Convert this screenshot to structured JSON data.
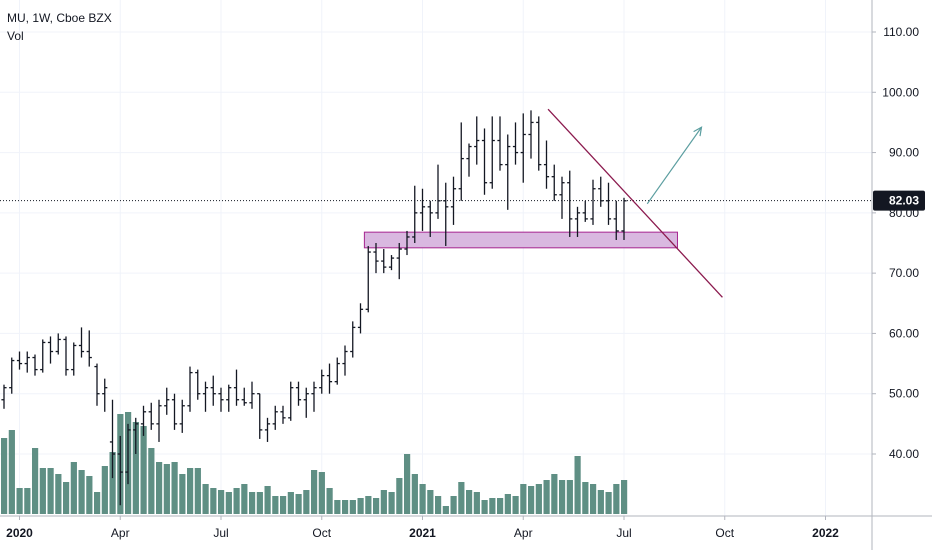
{
  "header": {
    "symbol_line": "MU, 1W, Cboe BZX",
    "indicator": "Vol"
  },
  "colors": {
    "price_bar": "#131722",
    "volume": "#5f8f84",
    "trendline": "#8b1a4e",
    "zone_fill": "#d9b8e0",
    "zone_border": "#a6248f",
    "projection_arrow": "#5b9ea0",
    "last_price_bg": "#131722",
    "grid": "#f0f3fa"
  },
  "chart_data": {
    "type": "ohlc",
    "y_axis": {
      "ticks": [
        "40.00",
        "50.00",
        "60.00",
        "70.00",
        "80.00",
        "90.00",
        "100.00",
        "110.00"
      ],
      "min": 31,
      "max": 116
    },
    "x_axis": {
      "ticks": [
        {
          "label": "2020",
          "bar": 2,
          "bold": true
        },
        {
          "label": "Apr",
          "bar": 15
        },
        {
          "label": "Jul",
          "bar": 28
        },
        {
          "label": "Oct",
          "bar": 41
        },
        {
          "label": "2021",
          "bar": 54,
          "bold": true
        },
        {
          "label": "Apr",
          "bar": 67
        },
        {
          "label": "Jul",
          "bar": 80
        },
        {
          "label": "Oct",
          "bar": 93
        },
        {
          "label": "2022",
          "bar": 106,
          "bold": true
        }
      ]
    },
    "last_price": "82.03",
    "bars": [
      [
        49.0,
        51.5,
        47.5,
        51.0
      ],
      [
        51.0,
        56.0,
        50.0,
        55.5
      ],
      [
        55.5,
        57.0,
        54.0,
        55.0
      ],
      [
        55.0,
        57.0,
        53.5,
        56.0
      ],
      [
        56.0,
        56.5,
        53.0,
        54.0
      ],
      [
        54.0,
        59.0,
        53.5,
        58.5
      ],
      [
        58.5,
        59.5,
        55.0,
        57.0
      ],
      [
        57.0,
        60.0,
        56.5,
        59.0
      ],
      [
        59.0,
        59.5,
        53.0,
        54.0
      ],
      [
        54.0,
        58.5,
        53.0,
        58.0
      ],
      [
        58.0,
        61.0,
        56.0,
        57.0
      ],
      [
        57.0,
        60.5,
        54.5,
        56.0
      ],
      [
        54.5,
        55.0,
        48.0,
        50.0
      ],
      [
        50.0,
        52.5,
        47.0,
        51.0
      ],
      [
        42.0,
        49.0,
        36.0,
        40.0
      ],
      [
        40.0,
        43.0,
        31.5,
        37.0
      ],
      [
        37.0,
        45.0,
        35.0,
        44.0
      ],
      [
        44.0,
        46.0,
        40.0,
        45.0
      ],
      [
        45.0,
        48.0,
        43.0,
        47.0
      ],
      [
        47.0,
        48.5,
        44.0,
        45.0
      ],
      [
        45.0,
        49.0,
        42.0,
        48.0
      ],
      [
        48.0,
        51.0,
        46.5,
        49.0
      ],
      [
        49.0,
        50.0,
        44.0,
        45.0
      ],
      [
        45.0,
        49.0,
        43.5,
        48.0
      ],
      [
        48.0,
        54.5,
        47.0,
        53.5
      ],
      [
        53.5,
        54.0,
        49.0,
        50.0
      ],
      [
        50.0,
        52.0,
        47.0,
        51.0
      ],
      [
        51.0,
        53.0,
        48.0,
        50.0
      ],
      [
        50.0,
        51.0,
        47.0,
        49.0
      ],
      [
        49.0,
        51.5,
        47.0,
        51.0
      ],
      [
        51.0,
        54.0,
        48.0,
        49.0
      ],
      [
        49.0,
        51.0,
        48.0,
        48.5
      ],
      [
        48.5,
        52.0,
        47.5,
        50.0
      ],
      [
        50.0,
        50.0,
        42.5,
        44.0
      ],
      [
        44.0,
        46.0,
        42.0,
        45.0
      ],
      [
        45.0,
        48.0,
        44.0,
        47.0
      ],
      [
        47.0,
        48.0,
        45.0,
        46.0
      ],
      [
        46.0,
        52.0,
        45.5,
        51.0
      ],
      [
        51.0,
        52.0,
        48.0,
        49.0
      ],
      [
        49.0,
        51.0,
        46.0,
        50.0
      ],
      [
        50.0,
        52.0,
        47.0,
        51.0
      ],
      [
        51.0,
        54.0,
        50.0,
        53.0
      ],
      [
        53.0,
        55.0,
        50.0,
        52.0
      ],
      [
        52.0,
        56.0,
        51.5,
        55.0
      ],
      [
        55.0,
        58.0,
        53.0,
        57.0
      ],
      [
        57.0,
        62.0,
        56.0,
        61.0
      ],
      [
        61.0,
        65.0,
        60.0,
        64.0
      ],
      [
        64.0,
        74.5,
        63.5,
        73.5
      ],
      [
        73.5,
        75.0,
        70.0,
        72.0
      ],
      [
        72.0,
        74.0,
        70.0,
        71.0
      ],
      [
        71.0,
        73.0,
        70.5,
        72.5
      ],
      [
        72.5,
        75.0,
        69.0,
        74.0
      ],
      [
        74.0,
        77.0,
        73.0,
        76.0
      ],
      [
        76.0,
        84.5,
        75.0,
        80.0
      ],
      [
        80.0,
        84.0,
        77.0,
        81.0
      ],
      [
        81.0,
        82.0,
        76.0,
        80.0
      ],
      [
        80.0,
        88.0,
        79.0,
        82.0
      ],
      [
        82.0,
        85.0,
        74.5,
        81.0
      ],
      [
        81.0,
        86.0,
        78.0,
        84.0
      ],
      [
        84.0,
        95.0,
        82.0,
        89.0
      ],
      [
        89.0,
        91.5,
        86.0,
        91.0
      ],
      [
        91.0,
        96.0,
        88.0,
        92.0
      ],
      [
        92.0,
        94.0,
        83.0,
        85.0
      ],
      [
        85.0,
        96.0,
        84.0,
        92.0
      ],
      [
        92.0,
        96.0,
        87.0,
        88.0
      ],
      [
        88.0,
        93.0,
        80.5,
        91.0
      ],
      [
        91.0,
        95.0,
        88.0,
        90.0
      ],
      [
        90.0,
        96.5,
        85.0,
        93.0
      ],
      [
        93.0,
        97.0,
        89.0,
        95.0
      ],
      [
        95.0,
        96.0,
        87.0,
        88.0
      ],
      [
        88.0,
        92.0,
        84.0,
        86.0
      ],
      [
        86.0,
        88.0,
        82.0,
        83.0
      ],
      [
        83.0,
        86.0,
        79.0,
        85.0
      ],
      [
        85.0,
        87.0,
        76.0,
        79.0
      ],
      [
        79.0,
        81.0,
        76.0,
        80.0
      ],
      [
        80.0,
        82.0,
        78.5,
        79.0
      ],
      [
        79.0,
        85.5,
        78.0,
        84.0
      ],
      [
        84.0,
        86.0,
        81.0,
        82.0
      ],
      [
        82.0,
        85.0,
        78.0,
        79.0
      ],
      [
        79.0,
        82.0,
        75.5,
        77.0
      ],
      [
        77.0,
        82.5,
        75.5,
        82.0
      ]
    ],
    "volume": [
      0.38,
      0.42,
      0.13,
      0.13,
      0.33,
      0.23,
      0.23,
      0.2,
      0.16,
      0.26,
      0.22,
      0.19,
      0.11,
      0.24,
      0.31,
      0.5,
      0.51,
      0.46,
      0.44,
      0.33,
      0.26,
      0.25,
      0.26,
      0.2,
      0.23,
      0.23,
      0.15,
      0.13,
      0.12,
      0.11,
      0.13,
      0.15,
      0.11,
      0.11,
      0.14,
      0.09,
      0.09,
      0.11,
      0.1,
      0.12,
      0.22,
      0.21,
      0.13,
      0.07,
      0.07,
      0.07,
      0.08,
      0.09,
      0.08,
      0.12,
      0.11,
      0.18,
      0.3,
      0.2,
      0.15,
      0.12,
      0.09,
      0.04,
      0.09,
      0.16,
      0.12,
      0.11,
      0.07,
      0.08,
      0.08,
      0.1,
      0.09,
      0.15,
      0.14,
      0.15,
      0.17,
      0.2,
      0.17,
      0.17,
      0.29,
      0.16,
      0.15,
      0.12,
      0.11,
      0.15,
      0.17
    ]
  }
}
